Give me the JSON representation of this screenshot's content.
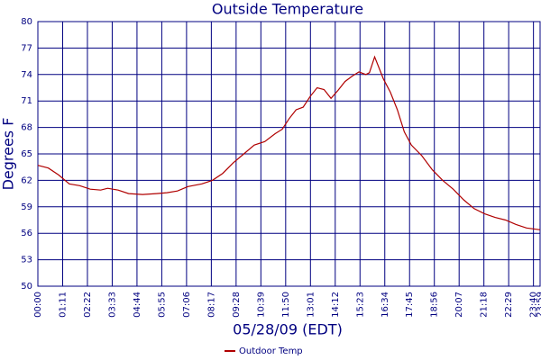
{
  "chart_data": {
    "type": "line",
    "title": "Outside Temperature",
    "y_label": "Degrees F",
    "x_label": "05/28/09 (EDT)",
    "x": [
      0,
      30,
      60,
      90,
      120,
      150,
      180,
      200,
      230,
      260,
      300,
      340,
      370,
      400,
      430,
      470,
      500,
      530,
      560,
      590,
      620,
      650,
      680,
      700,
      720,
      740,
      760,
      780,
      800,
      820,
      840,
      860,
      880,
      900,
      920,
      940,
      950,
      965,
      975,
      990,
      1010,
      1030,
      1050,
      1070,
      1100,
      1130,
      1160,
      1190,
      1220,
      1250,
      1280,
      1310,
      1340,
      1370,
      1400,
      1439
    ],
    "series": [
      {
        "name": "Outdoor Temp",
        "color": "#b00000",
        "values": [
          63.7,
          63.4,
          62.6,
          61.6,
          61.4,
          61.0,
          60.9,
          61.1,
          60.9,
          60.5,
          60.4,
          60.5,
          60.6,
          60.8,
          61.3,
          61.6,
          62.0,
          62.8,
          64.0,
          65.0,
          66.0,
          66.4,
          67.3,
          67.8,
          69.0,
          70.0,
          70.3,
          71.5,
          72.5,
          72.3,
          71.3,
          72.2,
          73.2,
          73.8,
          74.3,
          74.0,
          74.2,
          76.0,
          75.0,
          73.5,
          72.0,
          70.0,
          67.5,
          66.0,
          64.8,
          63.2,
          62.0,
          61.0,
          59.8,
          58.8,
          58.2,
          57.8,
          57.5,
          57.0,
          56.6,
          56.4
        ]
      }
    ],
    "xlim": [
      0,
      1439
    ],
    "xticks": [
      {
        "value": 0,
        "label": "00:00"
      },
      {
        "value": 71,
        "label": "01:11"
      },
      {
        "value": 142,
        "label": "02:22"
      },
      {
        "value": 213,
        "label": "03:33"
      },
      {
        "value": 284,
        "label": "04:44"
      },
      {
        "value": 355,
        "label": "05:55"
      },
      {
        "value": 426,
        "label": "07:06"
      },
      {
        "value": 497,
        "label": "08:17"
      },
      {
        "value": 568,
        "label": "09:28"
      },
      {
        "value": 639,
        "label": "10:39"
      },
      {
        "value": 710,
        "label": "11:50"
      },
      {
        "value": 781,
        "label": "13:01"
      },
      {
        "value": 852,
        "label": "14:12"
      },
      {
        "value": 923,
        "label": "15:23"
      },
      {
        "value": 994,
        "label": "16:34"
      },
      {
        "value": 1065,
        "label": "17:45"
      },
      {
        "value": 1136,
        "label": "18:56"
      },
      {
        "value": 1207,
        "label": "20:07"
      },
      {
        "value": 1278,
        "label": "21:18"
      },
      {
        "value": 1349,
        "label": "22:29"
      },
      {
        "value": 1420,
        "label": "23:40"
      },
      {
        "value": 1439,
        "label": "23:59"
      }
    ],
    "ylim": [
      50,
      80
    ],
    "yticks": [
      50,
      53,
      56,
      59,
      62,
      65,
      68,
      71,
      74,
      77,
      80
    ],
    "grid": true,
    "grid_color": "#000080"
  }
}
